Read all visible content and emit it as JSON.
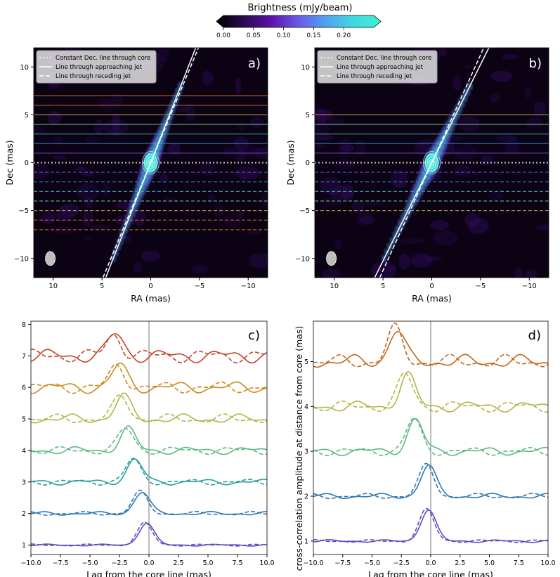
{
  "colorbar": {
    "label": "Brightness (mJy/beam)",
    "ticks": [
      "0.00",
      "0.05",
      "0.10",
      "0.15",
      "0.20"
    ],
    "range": [
      0,
      0.25
    ],
    "colors": [
      "#000000",
      "#2a0a4f",
      "#5b12a8",
      "#6a5ae8",
      "#4fa3f0",
      "#3fd9e0",
      "#40f0d0"
    ]
  },
  "images": [
    {
      "panel_label": "a)",
      "xlabel": "RA (mas)",
      "ylabel": "Dec (mas)",
      "xlim": [
        12,
        -12
      ],
      "ylim": [
        -12,
        12
      ],
      "xticks": [
        "10",
        "5",
        "0",
        "−5",
        "−10"
      ],
      "yticks": [
        "−10",
        "−5",
        "0",
        "5",
        "10"
      ],
      "legend": [
        "Constant Dec. line through core",
        "Line through approaching jet",
        "Line through receding jet"
      ],
      "approach_slope": 2.6,
      "recede_slope": 2.45,
      "bands": [
        7,
        6,
        5,
        4,
        3,
        2,
        1,
        0,
        -1,
        -2,
        -3,
        -4,
        -5,
        -6,
        -7
      ]
    },
    {
      "panel_label": "b)",
      "xlabel": "RA (mas)",
      "ylabel": "Dec (mas)",
      "xlim": [
        12,
        -12
      ],
      "ylim": [
        -12,
        12
      ],
      "xticks": [
        "10",
        "5",
        "0",
        "−5",
        "−10"
      ],
      "yticks": [
        "−10",
        "−5",
        "0",
        "5",
        "10"
      ],
      "legend": [
        "Constant Dec. line through core",
        "Line through approaching jet",
        "Line through receding jet"
      ],
      "approach_slope": 2.05,
      "recede_slope": 2.25,
      "bands": [
        5,
        4,
        3,
        2,
        1,
        0,
        -1,
        -2,
        -3,
        -4,
        -5
      ]
    }
  ],
  "chart_data": [
    {
      "type": "line",
      "panel_label": "c)",
      "xlabel": "Lag from the core line (mas)",
      "ylabel": "",
      "xlim": [
        -10,
        10
      ],
      "ylim": [
        0.7,
        8.1
      ],
      "xticks": [
        "−10.0",
        "−7.5",
        "−5.0",
        "−2.5",
        "0.0",
        "2.5",
        "5.0",
        "7.5",
        "10.0"
      ],
      "yticks": [
        "1",
        "2",
        "3",
        "4",
        "5",
        "6",
        "7",
        "8"
      ],
      "series": [
        {
          "offset": 1,
          "peak_lag": -0.2,
          "peak_height": 0.7,
          "color": "#5a4fc0"
        },
        {
          "offset": 2,
          "peak_lag": -0.6,
          "peak_height": 0.68,
          "color": "#2e78b4"
        },
        {
          "offset": 3,
          "peak_lag": -1.2,
          "peak_height": 0.7,
          "color": "#2a9e9e"
        },
        {
          "offset": 4,
          "peak_lag": -1.8,
          "peak_height": 0.68,
          "color": "#5cb884"
        },
        {
          "offset": 5,
          "peak_lag": -2.2,
          "peak_height": 0.7,
          "color": "#b2b448"
        },
        {
          "offset": 6,
          "peak_lag": -2.5,
          "peak_height": 0.68,
          "color": "#cc8a1c"
        },
        {
          "offset": 7,
          "peak_lag": -2.8,
          "peak_height": 0.68,
          "color": "#c0442c"
        }
      ]
    },
    {
      "type": "line",
      "panel_label": "d)",
      "xlabel": "Lag from the core line (mas)",
      "ylabel": "cross-correlation amplitude at distance from core (mas)",
      "xlim": [
        -10,
        10
      ],
      "ylim": [
        0.7,
        5.9
      ],
      "xticks": [
        "−10.0",
        "−7.5",
        "−5.0",
        "−2.5",
        "0.0",
        "2.5",
        "5.0",
        "7.5",
        "10.0"
      ],
      "yticks": [
        "1",
        "2",
        "3",
        "4",
        "5"
      ],
      "series": [
        {
          "offset": 1,
          "peak_lag": -0.2,
          "peak_height": 0.7,
          "color": "#5a4fc0"
        },
        {
          "offset": 2,
          "peak_lag": -0.2,
          "peak_height": 0.68,
          "color": "#2e78b4"
        },
        {
          "offset": 3,
          "peak_lag": -1.3,
          "peak_height": 0.7,
          "color": "#5cb884"
        },
        {
          "offset": 4,
          "peak_lag": -2.0,
          "peak_height": 0.7,
          "color": "#b2b448"
        },
        {
          "offset": 5,
          "peak_lag": -2.9,
          "peak_height": 0.7,
          "color": "#c0661c"
        }
      ]
    }
  ]
}
